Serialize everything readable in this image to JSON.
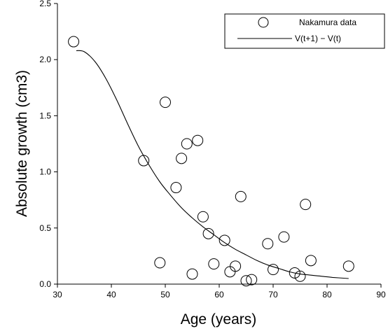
{
  "chart_data": {
    "type": "scatter",
    "xlabel": "Age (years)",
    "ylabel": "Absolute growth (cm3)",
    "xlim": [
      30,
      90
    ],
    "ylim": [
      0.0,
      2.5
    ],
    "x_ticks": [
      30,
      40,
      50,
      60,
      70,
      80,
      90
    ],
    "y_ticks": [
      0.0,
      0.5,
      1.0,
      1.5,
      2.0,
      2.5
    ],
    "x_tick_labels": [
      "30",
      "40",
      "50",
      "60",
      "70",
      "80",
      "90"
    ],
    "y_tick_labels": [
      "0.0",
      "0.5",
      "1.0",
      "1.5",
      "2.0",
      "2.5"
    ],
    "grid": false,
    "legend_position": "top-right",
    "series": [
      {
        "name": "Nakamura data",
        "kind": "scatter",
        "marker": "open-circle",
        "points": [
          {
            "x": 33,
            "y": 2.16
          },
          {
            "x": 46,
            "y": 1.1
          },
          {
            "x": 49,
            "y": 0.19
          },
          {
            "x": 50,
            "y": 1.62
          },
          {
            "x": 52,
            "y": 0.86
          },
          {
            "x": 53,
            "y": 1.12
          },
          {
            "x": 54,
            "y": 1.25
          },
          {
            "x": 55,
            "y": 0.09
          },
          {
            "x": 56,
            "y": 1.28
          },
          {
            "x": 57,
            "y": 0.6
          },
          {
            "x": 58,
            "y": 0.45
          },
          {
            "x": 59,
            "y": 0.18
          },
          {
            "x": 61,
            "y": 0.39
          },
          {
            "x": 62,
            "y": 0.11
          },
          {
            "x": 63,
            "y": 0.16
          },
          {
            "x": 64,
            "y": 0.78
          },
          {
            "x": 65,
            "y": 0.03
          },
          {
            "x": 66,
            "y": 0.04
          },
          {
            "x": 69,
            "y": 0.36
          },
          {
            "x": 70,
            "y": 0.13
          },
          {
            "x": 72,
            "y": 0.42
          },
          {
            "x": 74,
            "y": 0.1
          },
          {
            "x": 75,
            "y": 0.07
          },
          {
            "x": 76,
            "y": 0.71
          },
          {
            "x": 77,
            "y": 0.21
          },
          {
            "x": 84,
            "y": 0.16
          }
        ]
      },
      {
        "name": "V(t+1) − V(t)",
        "kind": "line",
        "points": [
          {
            "x": 33.5,
            "y": 2.08
          },
          {
            "x": 35,
            "y": 2.07
          },
          {
            "x": 37,
            "y": 1.98
          },
          {
            "x": 39,
            "y": 1.83
          },
          {
            "x": 41,
            "y": 1.64
          },
          {
            "x": 43,
            "y": 1.43
          },
          {
            "x": 45,
            "y": 1.23
          },
          {
            "x": 47,
            "y": 1.06
          },
          {
            "x": 49,
            "y": 0.91
          },
          {
            "x": 51,
            "y": 0.79
          },
          {
            "x": 53,
            "y": 0.68
          },
          {
            "x": 55,
            "y": 0.59
          },
          {
            "x": 57,
            "y": 0.51
          },
          {
            "x": 59,
            "y": 0.44
          },
          {
            "x": 61,
            "y": 0.37
          },
          {
            "x": 63,
            "y": 0.31
          },
          {
            "x": 65,
            "y": 0.26
          },
          {
            "x": 67,
            "y": 0.21
          },
          {
            "x": 69,
            "y": 0.17
          },
          {
            "x": 71,
            "y": 0.14
          },
          {
            "x": 73,
            "y": 0.11
          },
          {
            "x": 75,
            "y": 0.09
          },
          {
            "x": 77,
            "y": 0.08
          },
          {
            "x": 79,
            "y": 0.07
          },
          {
            "x": 81,
            "y": 0.06
          },
          {
            "x": 84,
            "y": 0.05
          }
        ]
      }
    ]
  }
}
